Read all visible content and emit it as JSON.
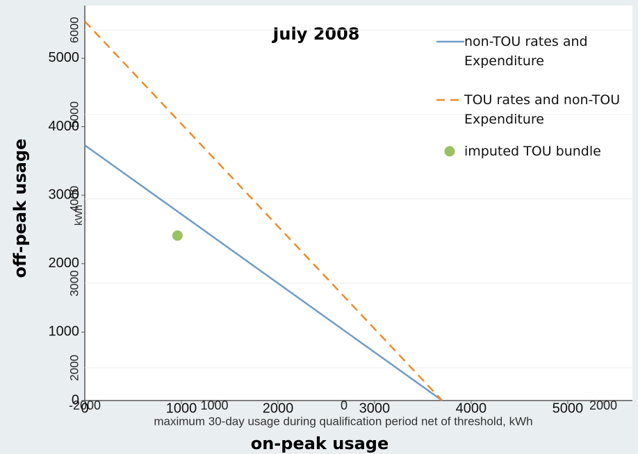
{
  "chart_data": {
    "type": "line",
    "title": "July 2008",
    "xlabel": "on-peak usage",
    "ylabel": "off-peak usage",
    "xlim": [
      0,
      5670
    ],
    "ylim": [
      0,
      5770
    ],
    "xticks": [
      0,
      1000,
      2000,
      3000,
      4000,
      5000
    ],
    "yticks": [
      0,
      1000,
      2000,
      3000,
      4000,
      5000
    ],
    "series": [
      {
        "name": "non-TOU rates and Expenditure",
        "type": "line",
        "style": "solid",
        "color": "#6f9ccb",
        "x": [
          0,
          3700
        ],
        "values": [
          3730,
          0
        ]
      },
      {
        "name": "TOU rates and non-TOU Expenditure",
        "type": "line",
        "style": "dashed",
        "color": "#f08a24",
        "x": [
          0,
          3700
        ],
        "values": [
          5540,
          0
        ]
      },
      {
        "name": "imputed TOU bundle",
        "type": "scatter",
        "color": "#9ac163",
        "x": [
          960
        ],
        "values": [
          2410
        ]
      }
    ],
    "overlay_axes": {
      "xlabel": "maximum 30-day usage during qualification period net of threshold, kWh",
      "ylabel": "kWh",
      "xlim": [
        -2000,
        2225
      ],
      "ylim": [
        1612,
        6289
      ],
      "xticks": [
        -2000,
        {
          "value": -1000,
          "label": "1000"
        },
        0,
        2000
      ],
      "yticks": [
        2000,
        3000,
        4000,
        5000,
        6000
      ]
    }
  }
}
